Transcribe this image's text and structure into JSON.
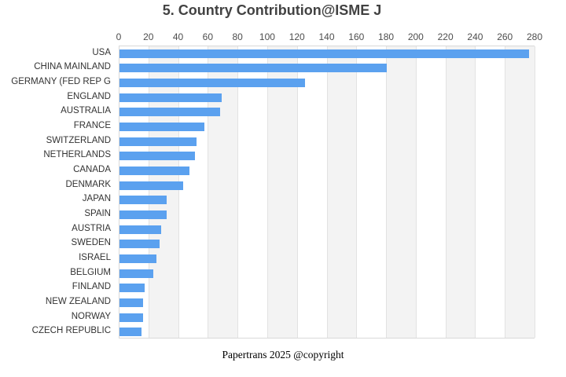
{
  "title": "5. Country Contribution@ISME J",
  "footer": "Papertrans 2025 @copyright",
  "colors": {
    "bar": "#5ba1ef",
    "band": "#f3f3f3",
    "gridline": "#e2e2e2",
    "plot_border": "#d9d9d9",
    "title_text": "#424242",
    "tick_text": "#4d4d4d",
    "category_text": "#333333"
  },
  "chart_data": {
    "type": "bar",
    "orientation": "horizontal",
    "title": "5. Country Contribution@ISME J",
    "categories": [
      "USA",
      "CHINA MAINLAND",
      "GERMANY (FED REP G",
      "ENGLAND",
      "AUSTRALIA",
      "FRANCE",
      "SWITZERLAND",
      "NETHERLANDS",
      "CANADA",
      "DENMARK",
      "JAPAN",
      "SPAIN",
      "AUSTRIA",
      "SWEDEN",
      "ISRAEL",
      "BELGIUM",
      "FINLAND",
      "NEW ZEALAND",
      "NORWAY",
      "CZECH REPUBLIC"
    ],
    "values": [
      276,
      180,
      125,
      69,
      68,
      57,
      52,
      51,
      47,
      43,
      32,
      32,
      28,
      27,
      25,
      23,
      17,
      16,
      16,
      15
    ],
    "xlabel": "",
    "ylabel": "",
    "xlim": [
      0,
      280
    ],
    "xtick_interval": 20,
    "xticks": [
      0,
      20,
      40,
      60,
      80,
      100,
      120,
      140,
      160,
      180,
      200,
      220,
      240,
      260,
      280
    ],
    "axis_position": "top",
    "grid": true,
    "split_area": "alternating-gray",
    "legend": "none"
  }
}
